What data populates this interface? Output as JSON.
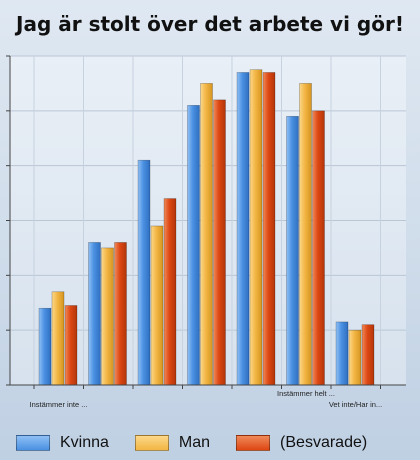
{
  "chart_data": {
    "type": "bar",
    "title": "Jag är stolt över det arbete vi gör!",
    "categories": [
      "Instämmer inte ...",
      "",
      "",
      "",
      "",
      "Instämmer helt ...",
      "Vet inte/Har in..."
    ],
    "series": [
      {
        "name": "Kvinna",
        "values": [
          14,
          26,
          41,
          51,
          57,
          49,
          11.5
        ]
      },
      {
        "name": "Man",
        "values": [
          17,
          25,
          29,
          55,
          57.5,
          55,
          10
        ]
      },
      {
        "name": "(Besvarade)",
        "values": [
          14.5,
          26,
          34,
          52,
          57,
          50,
          11
        ]
      }
    ],
    "ylim": [
      0,
      60
    ],
    "yticks": [
      0,
      10,
      20,
      30,
      40,
      50,
      60
    ],
    "grid": true,
    "legend_position": "bottom",
    "colors": [
      "#4a90e2",
      "#f2b544",
      "#dd4713"
    ]
  }
}
